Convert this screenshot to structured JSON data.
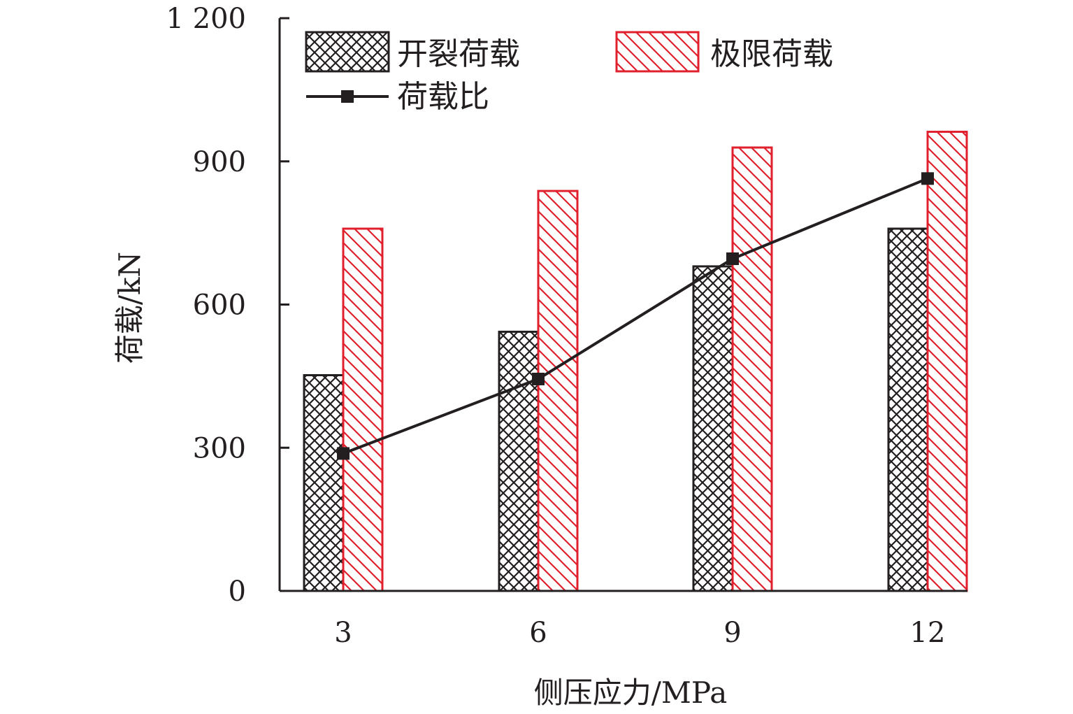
{
  "chart_data": {
    "type": "bar",
    "title": "",
    "xlabel": "侧压应力/MPa",
    "ylabel": "荷载/kN",
    "categories": [
      "3",
      "6",
      "9",
      "12"
    ],
    "ylim": [
      0,
      1200
    ],
    "yticks": [
      0,
      300,
      600,
      900,
      1200
    ],
    "ytick_labels": [
      "0",
      "300",
      "600",
      "900",
      "1 200"
    ],
    "grid": false,
    "legend_position": "top",
    "series": [
      {
        "name": "开裂荷载",
        "type": "bar",
        "pattern": "crosshatch",
        "color": "#231f20",
        "values": [
          452,
          543,
          680,
          759
        ]
      },
      {
        "name": "极限荷载",
        "type": "bar",
        "pattern": "diagonal",
        "color": "#e0202d",
        "values": [
          759,
          838,
          929,
          962
        ]
      },
      {
        "name": "荷载比",
        "type": "line",
        "marker": "square",
        "color": "#231f20",
        "values": [
          288,
          444,
          696,
          864
        ]
      }
    ]
  }
}
